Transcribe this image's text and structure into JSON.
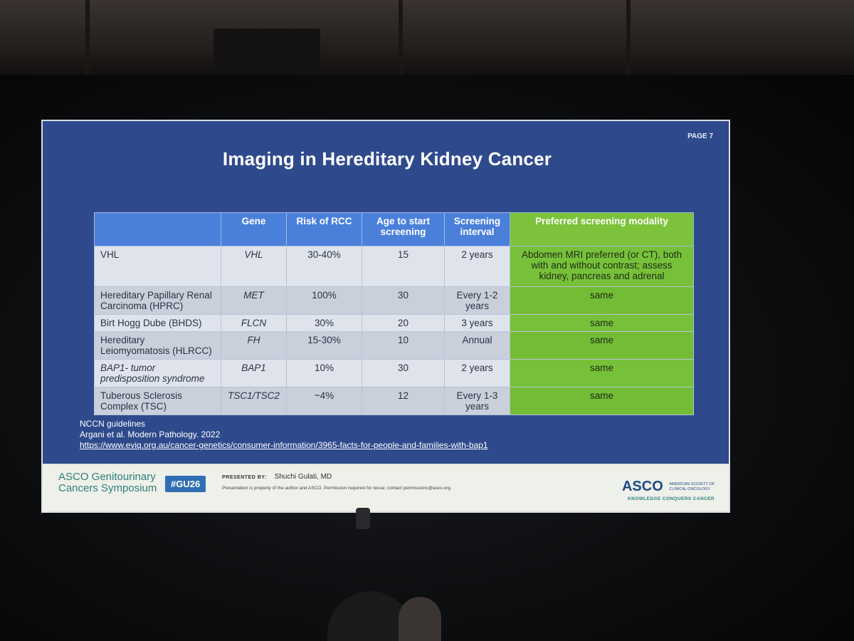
{
  "slide": {
    "page_label": "PAGE 7",
    "title": "Imaging in Hereditary Kidney Cancer",
    "table": {
      "headers": [
        "",
        "Gene",
        "Risk of RCC",
        "Age to start screening",
        "Screening interval",
        "Preferred screening modality"
      ],
      "rows": [
        [
          "VHL",
          "VHL",
          "30-40%",
          "15",
          "2 years",
          "Abdomen MRI preferred (or CT), both with and without contrast; assess kidney, pancreas and adrenal"
        ],
        [
          "Hereditary Papillary Renal Carcinoma (HPRC)",
          "MET",
          "100%",
          "30",
          "Every 1-2 years",
          "same"
        ],
        [
          "Birt Hogg Dube (BHDS)",
          "FLCN",
          "30%",
          "20",
          "3 years",
          "same"
        ],
        [
          "Hereditary Leiomyomatosis (HLRCC)",
          "FH",
          "15-30%",
          "10",
          "Annual",
          "same"
        ],
        [
          "BAP1- tumor predisposition syndrome",
          "BAP1",
          "10%",
          "30",
          "2 years",
          "same"
        ],
        [
          "Tuberous Sclerosis Complex (TSC)",
          "TSC1/TSC2",
          "~4%",
          "12",
          "Every 1-3 years",
          "same"
        ]
      ]
    },
    "notes": [
      "NCCN guidelines",
      "Argani et al. Modern Pathology. 2022",
      "https://www.eviq.org.au/cancer-genetics/consumer-information/3965-facts-for-people-and-families-with-bap1"
    ],
    "footer": {
      "symposium_line1": "ASCO Genitourinary",
      "symposium_line2": "Cancers Symposium",
      "hashtag": "#GU26",
      "presented_by_label": "PRESENTED BY:",
      "presenter": "Shuchi Gulati, MD",
      "disclaimer": "Presentation is property of the author and ASCO. Permission required for reuse; contact permissions@asco.org.",
      "asco_word": "ASCO",
      "asco_org_line1": "AMERICAN SOCIETY OF",
      "asco_org_line2": "CLINICAL ONCOLOGY",
      "asco_tagline": "KNOWLEDGE CONQUERS CANCER"
    }
  },
  "colors": {
    "slide_background": "#2f4a8c",
    "header_blue": "#4a80d9",
    "header_green": "#7cc23a",
    "cell_green": "#77c13a"
  }
}
